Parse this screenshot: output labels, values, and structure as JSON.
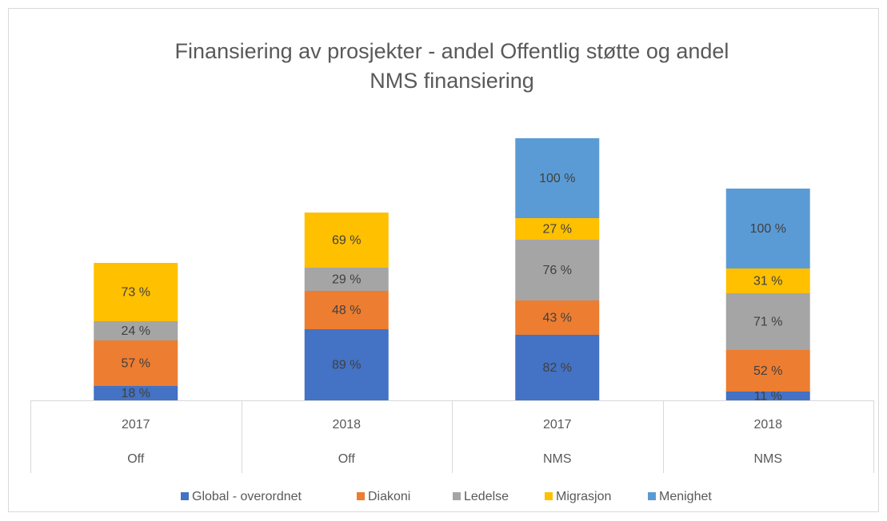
{
  "chart_data": {
    "type": "stacked_bar",
    "title": "Finansiering av prosjekter - andel Offentlig støtte og andel",
    "title_line2": "NMS finansiering",
    "categories": [
      "2017",
      "2018",
      "2017",
      "2018"
    ],
    "category_groups": [
      "Off",
      "Off",
      "NMS",
      "NMS"
    ],
    "series": [
      {
        "name": "Global - overordnet",
        "color": "#4472c4",
        "values": [
          18,
          89,
          82,
          11
        ],
        "value_labels": [
          "18 %",
          "89 %",
          "82 %",
          "11 %"
        ]
      },
      {
        "name": "Diakoni",
        "color": "#ed7d31",
        "values": [
          57,
          48,
          43,
          52
        ],
        "value_labels": [
          "57 %",
          "48 %",
          "43 %",
          "52 %"
        ]
      },
      {
        "name": "Ledelse",
        "color": "#a5a5a5",
        "values": [
          24,
          29,
          76,
          71
        ],
        "value_labels": [
          "24 %",
          "29 %",
          "76 %",
          "71 %"
        ]
      },
      {
        "name": "Migrasjon",
        "color": "#ffc000",
        "values": [
          73,
          69,
          27,
          31
        ],
        "value_labels": [
          "73 %",
          "69 %",
          "27 %",
          "31 %"
        ]
      },
      {
        "name": "Menighet",
        "color": "#5b9bd5",
        "values": [
          null,
          null,
          100,
          100
        ],
        "value_labels": [
          null,
          null,
          "100 %",
          "100 %"
        ]
      }
    ],
    "legend": "bottom"
  }
}
